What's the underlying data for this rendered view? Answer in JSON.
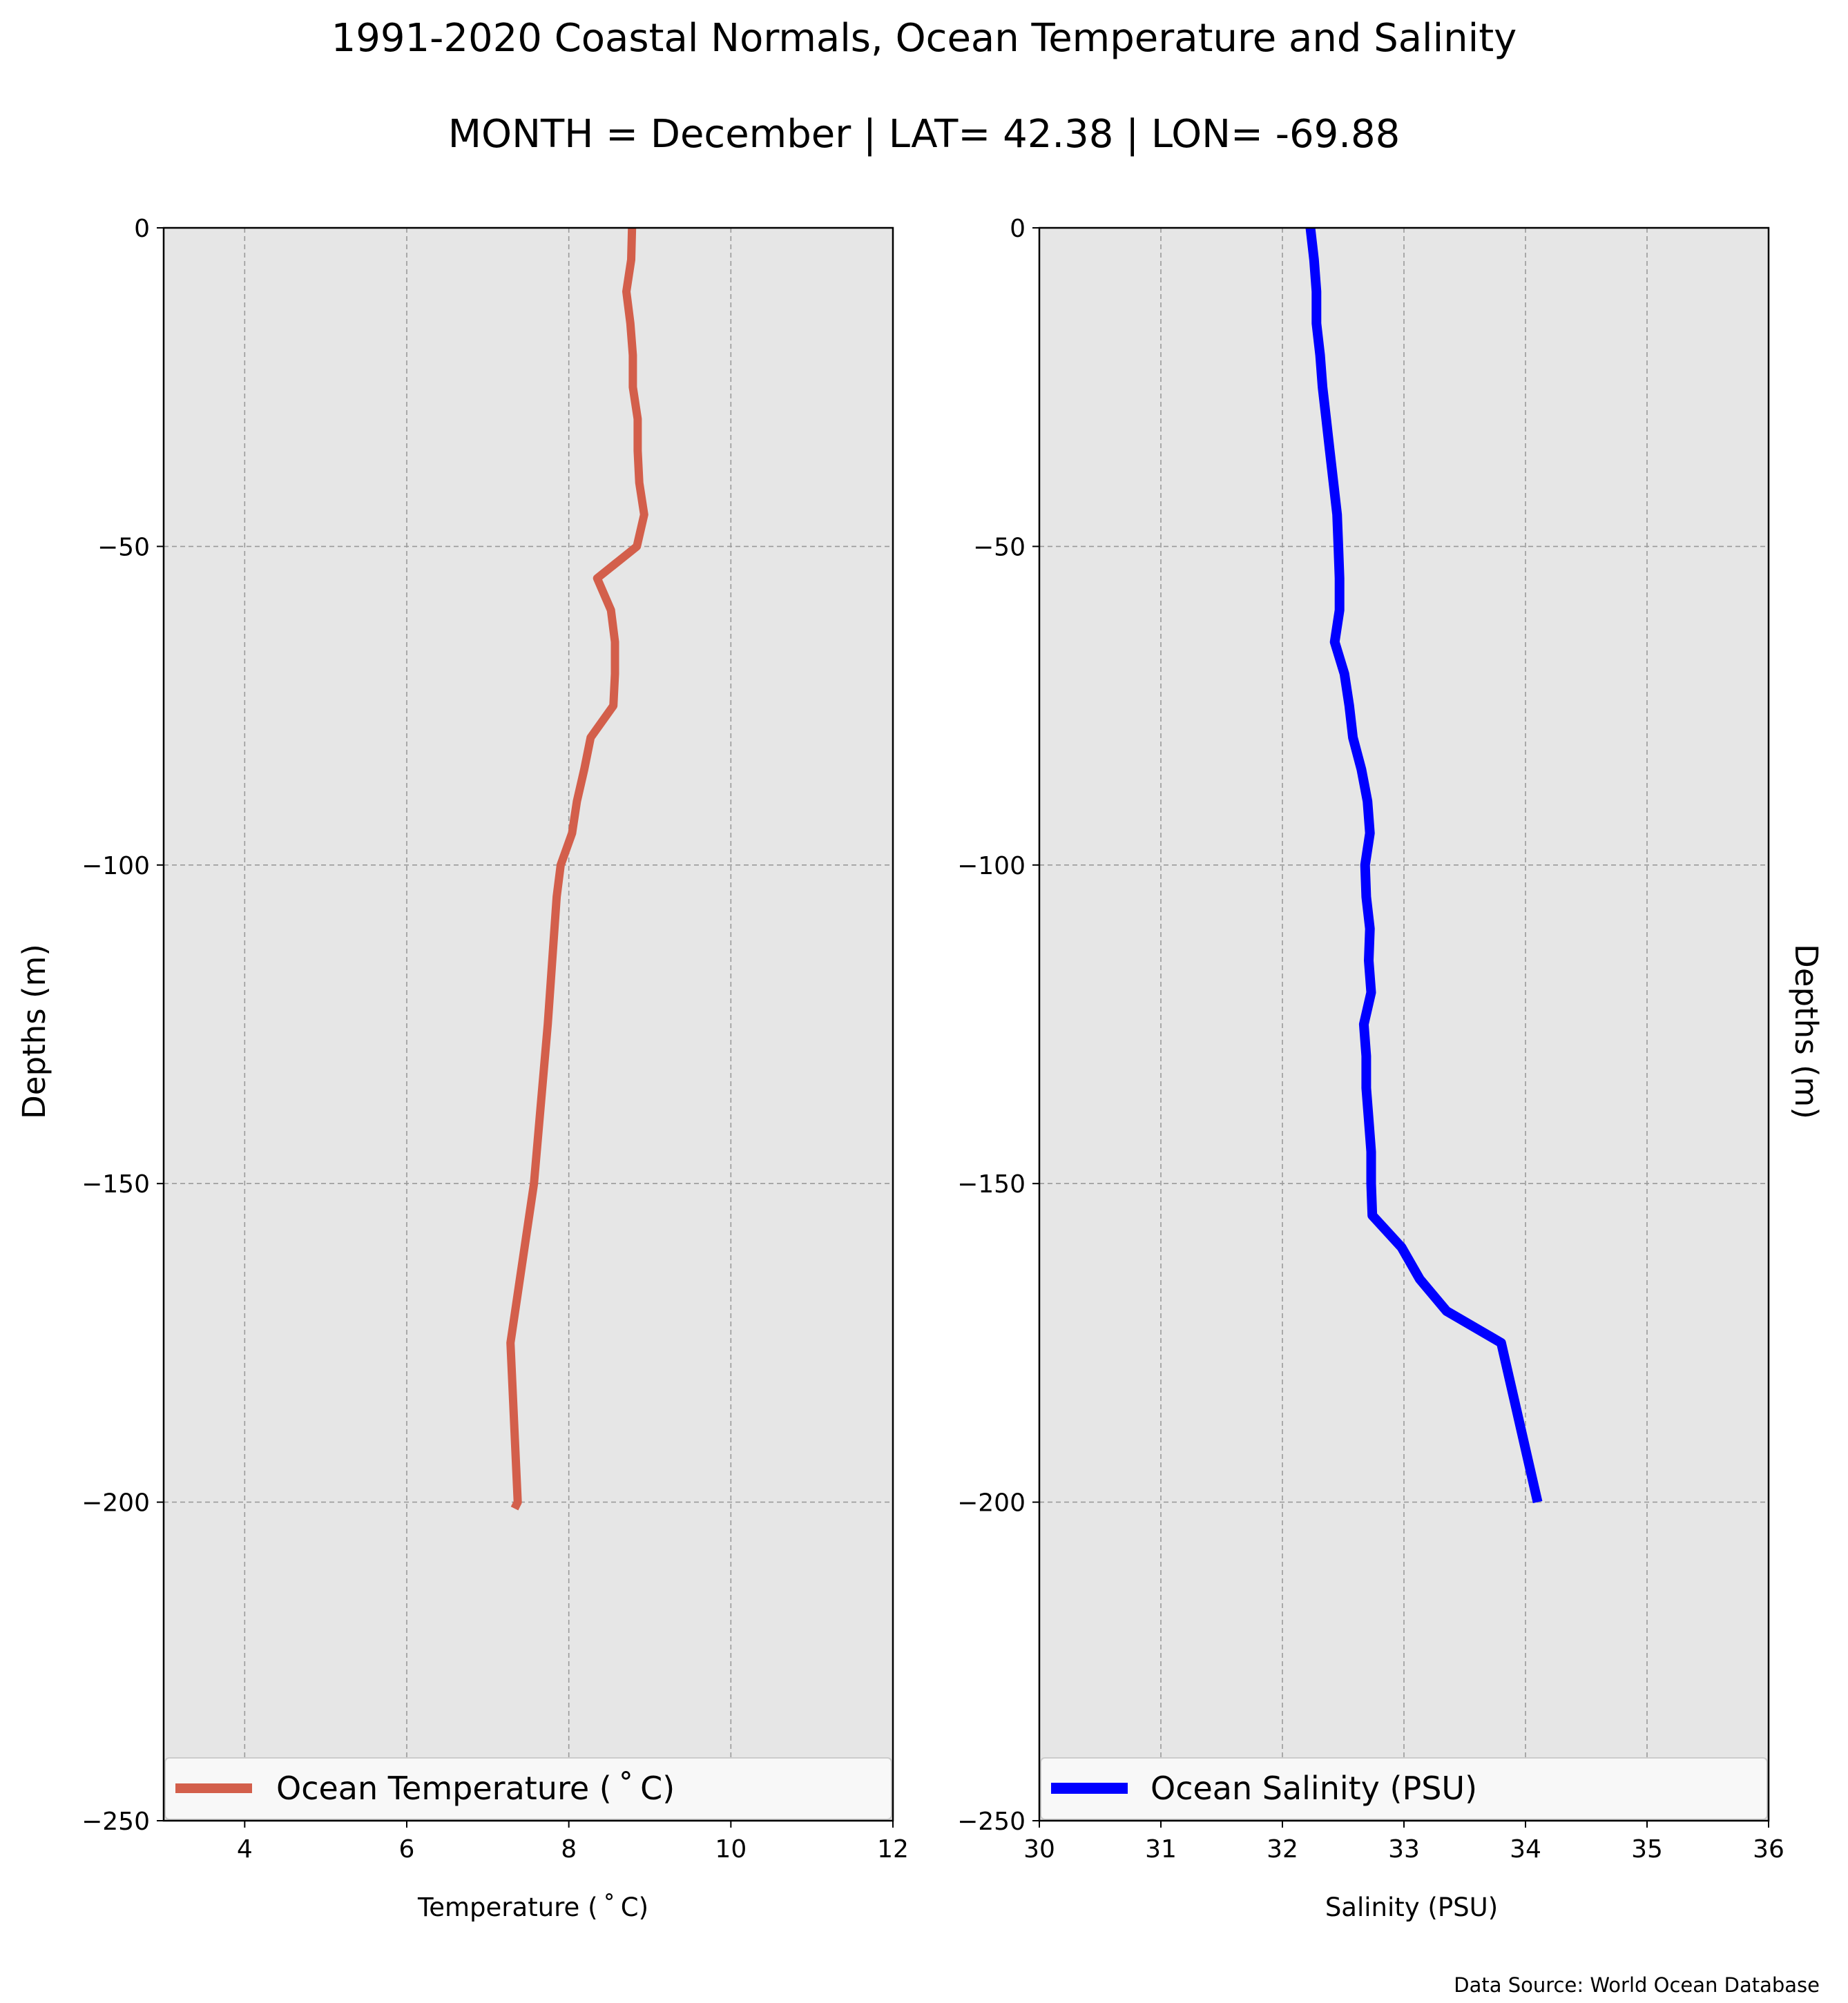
{
  "figure": {
    "title": "1991-2020 Coastal Normals, Ocean Temperature and Salinity",
    "subtitle": "MONTH = December | LAT= 42.38 | LON= -69.88",
    "source_note": "Data Source: World Ocean Database"
  },
  "colors": {
    "plot_background": "#e6e6e6",
    "grid": "#9a9a9a",
    "temperature_line": "#d35f4b",
    "salinity_line": "#0000ff"
  },
  "chart_data": [
    {
      "type": "line",
      "xlabel": "Temperature ($^\\circ$C)",
      "xlabel_display": "Temperature ( ˚ C)",
      "ylabel": "Depths (m)",
      "xlim": [
        3,
        12
      ],
      "ylim": [
        -250,
        0
      ],
      "xticks": [
        4,
        6,
        8,
        10,
        12
      ],
      "xtick_labels": [
        "4",
        "6",
        "8",
        "10",
        "12"
      ],
      "yticks": [
        0,
        -50,
        -100,
        -150,
        -200,
        -250
      ],
      "ytick_labels": [
        "0",
        "−50",
        "−100",
        "−150",
        "−200",
        "−250"
      ],
      "grid": true,
      "legend_position": "bottom",
      "series": [
        {
          "name": "Ocean Temperature ( ˚ C)",
          "color": "#d35f4b",
          "x": [
            8.78,
            8.77,
            8.71,
            8.76,
            8.79,
            8.79,
            8.85,
            8.85,
            8.87,
            8.93,
            8.84,
            8.35,
            8.52,
            8.57,
            8.57,
            8.55,
            8.27,
            8.19,
            8.1,
            8.04,
            7.9,
            7.85,
            7.74,
            7.57,
            7.28,
            7.37,
            7.33
          ],
          "y": [
            0,
            -5,
            -10,
            -15,
            -20,
            -25,
            -30,
            -35,
            -40,
            -45,
            -50,
            -55,
            -60,
            -65,
            -70,
            -75,
            -80,
            -85,
            -90,
            -95,
            -100,
            -105,
            -125,
            -150,
            -175,
            -200,
            -201
          ]
        }
      ]
    },
    {
      "type": "line",
      "xlabel": "Salinity (PSU)",
      "ylabel": "Depths (m)",
      "xlim": [
        30,
        36
      ],
      "ylim": [
        -250,
        0
      ],
      "xticks": [
        30,
        31,
        32,
        33,
        34,
        35,
        36
      ],
      "xtick_labels": [
        "30",
        "31",
        "32",
        "33",
        "34",
        "35",
        "36"
      ],
      "yticks": [
        0,
        -50,
        -100,
        -150,
        -200,
        -250
      ],
      "ytick_labels": [
        "0",
        "−50",
        "−100",
        "−150",
        "−200",
        "−250"
      ],
      "grid": true,
      "legend_position": "bottom",
      "series": [
        {
          "name": "Ocean Salinity (PSU)",
          "color": "#0000ff",
          "x": [
            32.23,
            32.26,
            32.28,
            32.28,
            32.31,
            32.33,
            32.36,
            32.39,
            32.42,
            32.45,
            32.46,
            32.47,
            32.47,
            32.43,
            32.51,
            32.55,
            32.58,
            32.65,
            32.7,
            32.72,
            32.68,
            32.69,
            32.72,
            32.71,
            32.73,
            32.67,
            32.69,
            32.69,
            32.71,
            32.73,
            32.73,
            32.74,
            32.98,
            33.13,
            33.35,
            33.8,
            34.1
          ],
          "y": [
            0,
            -5,
            -10,
            -15,
            -20,
            -25,
            -30,
            -35,
            -40,
            -45,
            -50,
            -55,
            -60,
            -65,
            -70,
            -75,
            -80,
            -85,
            -90,
            -95,
            -100,
            -105,
            -110,
            -115,
            -120,
            -125,
            -130,
            -135,
            -140,
            -145,
            -150,
            -155,
            -160,
            -165,
            -170,
            -175,
            -200
          ]
        }
      ]
    }
  ]
}
